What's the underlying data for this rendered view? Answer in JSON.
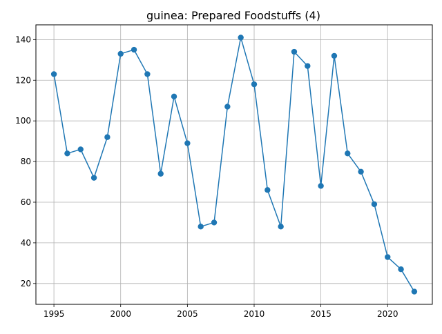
{
  "chart_data": {
    "type": "line",
    "title": "guinea: Prepared Foodstuffs (4)",
    "xlabel": "",
    "ylabel": "",
    "x": [
      1995,
      1996,
      1997,
      1998,
      1999,
      2000,
      2001,
      2002,
      2003,
      2004,
      2005,
      2006,
      2007,
      2008,
      2009,
      2010,
      2011,
      2012,
      2013,
      2014,
      2015,
      2016,
      2017,
      2018,
      2019,
      2020,
      2021,
      2022
    ],
    "series": [
      {
        "values": [
          123,
          84,
          86,
          72,
          92,
          133,
          135,
          123,
          74,
          112,
          89,
          48,
          50,
          107,
          141,
          118,
          66,
          48,
          134,
          127,
          68,
          132,
          84,
          75,
          59,
          33,
          27,
          16
        ],
        "color": "#1f77b4"
      }
    ],
    "xticks": [
      1995,
      2000,
      2005,
      2010,
      2015,
      2020
    ],
    "yticks": [
      20,
      40,
      60,
      80,
      100,
      120,
      140
    ],
    "xlim": [
      1993.65,
      2023.35
    ],
    "ylim": [
      9.75,
      147.25
    ],
    "grid": true,
    "legend": "none"
  }
}
